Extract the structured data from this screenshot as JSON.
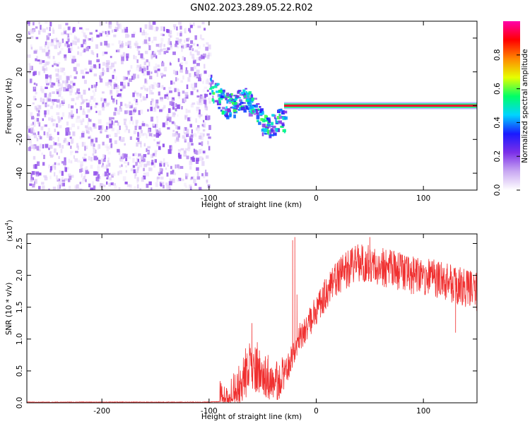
{
  "figure": {
    "title": "GN02.2023.289.05.22.R02"
  },
  "chart_data": [
    {
      "type": "heatmap",
      "title": "GN02.2023.289.05.22.R02",
      "xlabel": "Height of straight line (km)",
      "ylabel": "Frequency (Hz)",
      "xlim": [
        -270,
        150
      ],
      "ylim": [
        -50,
        50
      ],
      "x_ticks": [
        -200,
        -100,
        0,
        100
      ],
      "y_ticks": [
        -40,
        -20,
        0,
        20,
        40
      ],
      "grid": false,
      "regions": [
        {
          "x_range": [
            -270,
            -100
          ],
          "y_range": [
            -50,
            50
          ],
          "pattern": "noise",
          "normalized_amplitude": [
            0.05,
            0.2
          ]
        },
        {
          "x_range": [
            -100,
            -30
          ],
          "pattern": "scattered signal dropping from about +10 Hz to about -15 Hz",
          "normalized_amplitude": [
            0.2,
            0.7
          ]
        },
        {
          "x_range": [
            -30,
            150
          ],
          "frequency": 0,
          "pattern": "steady line at 0 Hz",
          "normalized_amplitude": [
            0.8,
            1.0
          ]
        }
      ],
      "colorbar": {
        "label": "Normalized spectral amplitude",
        "range": [
          0,
          1
        ],
        "ticks": [
          "0.0",
          "0.2",
          "0.4",
          "0.6",
          "0.8"
        ],
        "colors": [
          "#ffffff",
          "#c9a8f2",
          "#7c2fe8",
          "#1a1aff",
          "#00d4ff",
          "#00ff66",
          "#e6ff00",
          "#ff8800",
          "#ff0000",
          "#ff00aa"
        ]
      }
    },
    {
      "type": "line",
      "xlabel": "Height of straight line (km)",
      "ylabel": "SNR (10 * v/v)",
      "y_multiplier": "(x10",
      "y_multiplier_exp": "4",
      "xlim": [
        -270,
        150
      ],
      "ylim": [
        0,
        2.65
      ],
      "x_ticks": [
        -200,
        -100,
        0,
        100
      ],
      "y_ticks": [
        "0.0",
        "0.5",
        "1.0",
        "1.5",
        "2.0",
        "2.5"
      ],
      "grid": false,
      "series": [
        {
          "color": "#f03030",
          "x": [
            -270,
            -240,
            -200,
            -160,
            -120,
            -100,
            -90,
            -80,
            -75,
            -70,
            -65,
            -60,
            -55,
            -50,
            -45,
            -40,
            -35,
            -30,
            -25,
            -20,
            -15,
            -10,
            -5,
            0,
            5,
            10,
            15,
            20,
            25,
            30,
            35,
            40,
            45,
            50,
            55,
            60,
            65,
            70,
            80,
            90,
            100,
            110,
            120,
            130,
            140,
            150
          ],
          "y": [
            0.01,
            0.01,
            0.01,
            0.01,
            0.01,
            0.01,
            0.02,
            0.06,
            0.15,
            0.3,
            0.45,
            0.55,
            0.5,
            0.45,
            0.4,
            0.35,
            0.3,
            0.45,
            0.6,
            0.85,
            1.05,
            1.15,
            1.3,
            1.45,
            1.6,
            1.75,
            1.85,
            1.95,
            2.05,
            2.1,
            2.15,
            2.2,
            2.2,
            2.2,
            2.15,
            2.15,
            2.1,
            2.1,
            2.05,
            2.0,
            2.0,
            1.95,
            1.9,
            1.85,
            1.8,
            1.75
          ],
          "spikes": [
            {
              "x": -60,
              "y": 1.25
            },
            {
              "x": -55,
              "y": 0.95
            },
            {
              "x": -45,
              "y": 0.75
            },
            {
              "x": -22,
              "y": 2.55
            },
            {
              "x": -20,
              "y": 2.6
            },
            {
              "x": -18,
              "y": 1.7
            },
            {
              "x": 50,
              "y": 2.6
            },
            {
              "x": 130,
              "y": 1.1
            }
          ]
        }
      ]
    }
  ]
}
